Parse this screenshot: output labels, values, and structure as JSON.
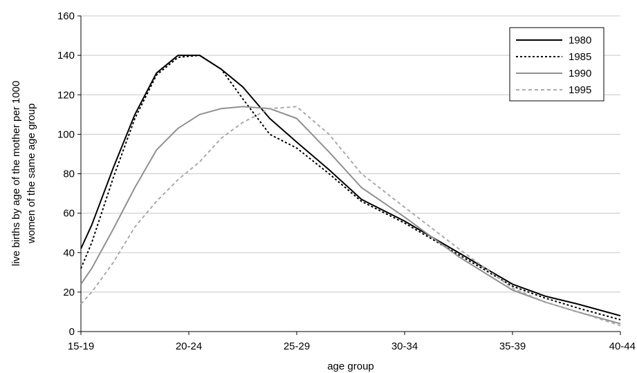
{
  "chart_data": {
    "type": "line",
    "xlabel": "age group",
    "ylabel_lines": [
      "live births by age of the mother per 1000",
      "women of the same age group"
    ],
    "categories": [
      "15-19",
      "20-24",
      "25-29",
      "30-34",
      "35-39",
      "40-44"
    ],
    "ylim": [
      0,
      160
    ],
    "yticks": [
      0,
      20,
      40,
      60,
      80,
      100,
      120,
      140,
      160
    ],
    "grid": true,
    "legend": "top-right",
    "series": [
      {
        "name": "1980",
        "color": "#000000",
        "dash": "solid",
        "points": [
          [
            0,
            42
          ],
          [
            0.1,
            54
          ],
          [
            0.3,
            83
          ],
          [
            0.5,
            110
          ],
          [
            0.7,
            131
          ],
          [
            0.9,
            140
          ],
          [
            1.1,
            140
          ],
          [
            1.3,
            133
          ],
          [
            1.5,
            124
          ],
          [
            1.75,
            108
          ],
          [
            2.0,
            96
          ],
          [
            2.3,
            82
          ],
          [
            2.6,
            67
          ],
          [
            3.0,
            56
          ],
          [
            3.5,
            40
          ],
          [
            4.0,
            24
          ],
          [
            4.3,
            18
          ],
          [
            4.6,
            14
          ],
          [
            5.0,
            8
          ]
        ]
      },
      {
        "name": "1985",
        "color": "#000000",
        "dash": "dotted",
        "points": [
          [
            0,
            32
          ],
          [
            0.1,
            45
          ],
          [
            0.3,
            78
          ],
          [
            0.5,
            108
          ],
          [
            0.7,
            130
          ],
          [
            0.9,
            139
          ],
          [
            1.1,
            140
          ],
          [
            1.3,
            133
          ],
          [
            1.5,
            118
          ],
          [
            1.75,
            100
          ],
          [
            2.0,
            93
          ],
          [
            2.3,
            80
          ],
          [
            2.6,
            66
          ],
          [
            3.0,
            55
          ],
          [
            3.5,
            39
          ],
          [
            4.0,
            23
          ],
          [
            4.3,
            17
          ],
          [
            4.6,
            12
          ],
          [
            5.0,
            6
          ]
        ]
      },
      {
        "name": "1990",
        "color": "#909090",
        "dash": "solid",
        "points": [
          [
            0,
            24
          ],
          [
            0.1,
            32
          ],
          [
            0.3,
            52
          ],
          [
            0.5,
            73
          ],
          [
            0.7,
            92
          ],
          [
            0.9,
            103
          ],
          [
            1.1,
            110
          ],
          [
            1.3,
            113
          ],
          [
            1.5,
            114
          ],
          [
            1.75,
            113
          ],
          [
            2.0,
            108
          ],
          [
            2.3,
            91
          ],
          [
            2.6,
            73
          ],
          [
            3.0,
            58
          ],
          [
            3.5,
            38
          ],
          [
            4.0,
            21
          ],
          [
            4.3,
            15
          ],
          [
            4.6,
            10
          ],
          [
            5.0,
            4
          ]
        ]
      },
      {
        "name": "1995",
        "color": "#aaaaaa",
        "dash": "dashed",
        "points": [
          [
            0,
            14
          ],
          [
            0.1,
            20
          ],
          [
            0.3,
            35
          ],
          [
            0.5,
            53
          ],
          [
            0.7,
            66
          ],
          [
            0.9,
            77
          ],
          [
            1.1,
            86
          ],
          [
            1.3,
            98
          ],
          [
            1.5,
            106
          ],
          [
            1.75,
            113
          ],
          [
            2.0,
            114
          ],
          [
            2.3,
            100
          ],
          [
            2.6,
            80
          ],
          [
            3.0,
            63
          ],
          [
            3.5,
            42
          ],
          [
            4.0,
            22
          ],
          [
            4.3,
            15
          ],
          [
            4.6,
            10
          ],
          [
            5.0,
            3
          ]
        ]
      }
    ]
  }
}
